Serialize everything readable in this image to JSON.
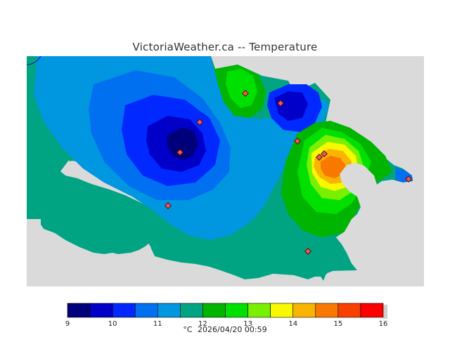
{
  "title": "VictoriaWeather.ca -- Temperature",
  "legend": {
    "ticks": [
      "9",
      "10",
      "11",
      "12",
      "13",
      "14",
      "15",
      "16"
    ],
    "colors": [
      "#00007a",
      "#0000c8",
      "#0028ff",
      "#0070f0",
      "#0096e0",
      "#00a482",
      "#00b400",
      "#00e000",
      "#78f000",
      "#f8f800",
      "#f8b400",
      "#f87800",
      "#f84000",
      "#ff0000"
    ]
  },
  "footer": {
    "unit": "°C",
    "datetime": "2026/04/20 00:59"
  },
  "map_colors": {
    "background": "#dadada",
    "base": "#00a482",
    "light_blue": "#0096e0",
    "blue": "#0070f0",
    "medium_blue": "#0028ff",
    "dark_blue": "#0000c8",
    "navy": "#00007a",
    "green": "#00b400",
    "bright_green": "#00e000",
    "lime": "#78f000",
    "yellow": "#f8f800",
    "orange": "#f8b400",
    "dark_orange": "#f87800",
    "red_orange": "#f84000",
    "station_fill": "#e06060",
    "station_stroke": "#700000"
  }
}
